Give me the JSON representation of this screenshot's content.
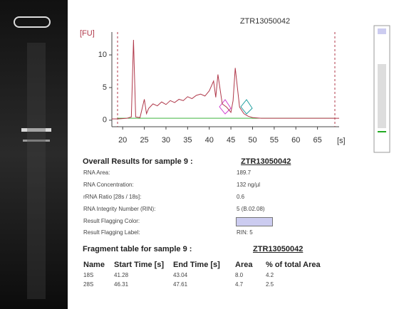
{
  "chart_data": {
    "type": "line",
    "title": "ZTR13050042",
    "y_label": "[FU]",
    "x_label": "[s]",
    "x": [
      17.5,
      19,
      21,
      22,
      22.5,
      23,
      24,
      25,
      25.5,
      26,
      27,
      28,
      29,
      30,
      31,
      32,
      33,
      34,
      35,
      36,
      37,
      38,
      39,
      40,
      41,
      41.5,
      42,
      43,
      44,
      45,
      45.5,
      46,
      47,
      48,
      49,
      50,
      52,
      55,
      60,
      65,
      70
    ],
    "series": [
      {
        "name": "ZTR13050042",
        "color": "#b0384a",
        "values": [
          0.2,
          0.2,
          0.3,
          0.5,
          12.3,
          0.5,
          0.4,
          3.2,
          1.0,
          1.8,
          2.5,
          2.2,
          2.8,
          2.4,
          3.0,
          2.7,
          3.2,
          3.0,
          3.6,
          3.3,
          3.8,
          4.0,
          3.7,
          4.5,
          6.0,
          3.5,
          7.0,
          2.5,
          2.0,
          1.2,
          3.0,
          8.0,
          2.0,
          1.0,
          0.6,
          0.4,
          0.3,
          0.3,
          0.3,
          0.3,
          0.3
        ]
      }
    ],
    "xlim": [
      17.5,
      70
    ],
    "ylim": [
      -1,
      13.5
    ],
    "xticks": [
      20,
      25,
      30,
      35,
      40,
      45,
      50,
      55,
      60,
      65
    ],
    "yticks": [
      0,
      5,
      10
    ]
  },
  "results": {
    "heading": "Overall Results for sample 9 :",
    "sample": "ZTR13050042",
    "rows": [
      [
        "RNA Area:",
        "189.7"
      ],
      [
        "RNA Concentration:",
        "132 ng/µl"
      ],
      [
        "rRNA Ratio [28s / 18s]:",
        "0.6"
      ],
      [
        "RNA Integrity Number (RIN):",
        "5 (B.02.08)"
      ]
    ],
    "flag_color_label": "Result Flagging Color:",
    "flag_label": [
      "Result Flagging Label:",
      "RIN: 5"
    ]
  },
  "fragments": {
    "heading": "Fragment table for sample 9 :",
    "sample": "ZTR13050042",
    "columns": [
      "Name",
      "Start Time [s]",
      "End Time [s]",
      "Area",
      "% of total Area"
    ],
    "rows": [
      [
        "18S",
        "41.28",
        "43.04",
        "8.0",
        "4.2"
      ],
      [
        "28S",
        "46.31",
        "47.61",
        "4.7",
        "2.5"
      ]
    ]
  }
}
